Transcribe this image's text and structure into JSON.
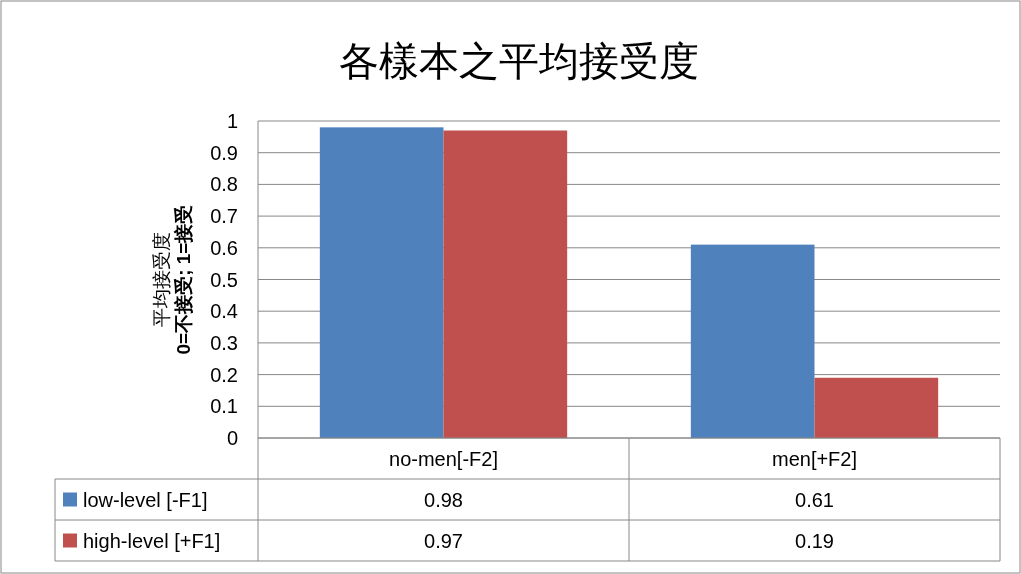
{
  "chart_data": {
    "type": "bar",
    "title": "各樣本之平均接受度",
    "ylabel": "平均接受度\n0=不接受; 1=接受",
    "categories": [
      "no-men[-F2]",
      "men[+F2]"
    ],
    "series": [
      {
        "name": "low-level [-F1]",
        "color": "#4f81bd",
        "values": [
          0.98,
          0.61
        ]
      },
      {
        "name": "high-level [+F1]",
        "color": "#c0504d",
        "values": [
          0.97,
          0.19
        ]
      }
    ],
    "ylim": [
      0,
      1
    ],
    "yticks": [
      0,
      0.1,
      0.2,
      0.3,
      0.4,
      0.5,
      0.6,
      0.7,
      0.8,
      0.9,
      1
    ],
    "grid": "y",
    "legend": "bottom",
    "data_labels": true
  }
}
